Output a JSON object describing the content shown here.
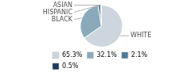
{
  "chart_data": {
    "type": "pie",
    "categories": [
      "WHITE",
      "BLACK",
      "HISPANIC",
      "ASIAN"
    ],
    "values": [
      65.3,
      32.1,
      2.1,
      0.5
    ],
    "value_labels": [
      "65.3%",
      "32.1%",
      "2.1%",
      "0.5%"
    ],
    "colors": [
      "#cdd5df",
      "#8aaabb",
      "#4d7a9a",
      "#1e3a5f"
    ],
    "legend": "lower left"
  }
}
